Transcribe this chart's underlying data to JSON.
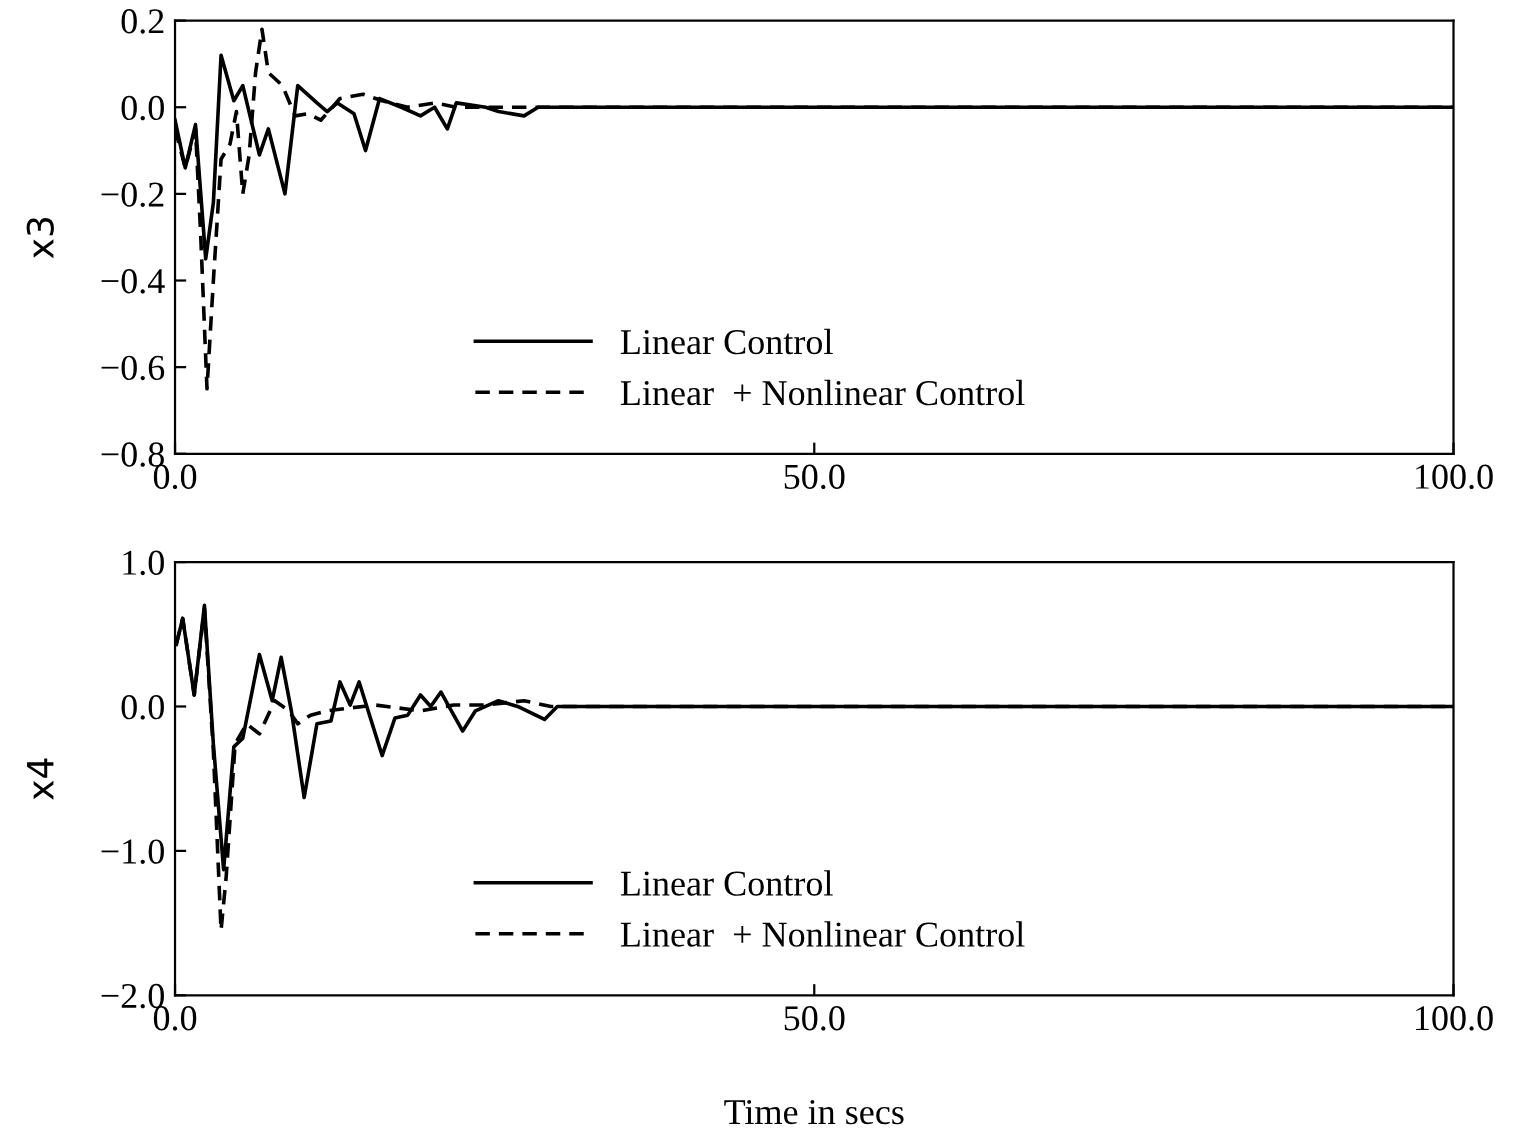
{
  "chart_data": [
    {
      "type": "line",
      "ylabel": "x3",
      "xlim": [
        0,
        100
      ],
      "ylim": [
        -0.8,
        0.2
      ],
      "xticks": [
        {
          "value": 0,
          "label": "0.0"
        },
        {
          "value": 50,
          "label": "50.0"
        },
        {
          "value": 100,
          "label": "100.0"
        }
      ],
      "yticks": [
        {
          "value": 0.2,
          "label": "0.2"
        },
        {
          "value": 0,
          "label": "0.0"
        },
        {
          "value": -0.2,
          "label": "−0.2"
        },
        {
          "value": -0.4,
          "label": "−0.4"
        },
        {
          "value": -0.6,
          "label": "−0.6"
        },
        {
          "value": -0.8,
          "label": "−0.8"
        }
      ],
      "legend": "bottom",
      "grid": false,
      "series": [
        {
          "name": "Linear Control",
          "color": "#000000",
          "line_style": "solid",
          "x": [
            0,
            0.8,
            1.6,
            2.4,
            3.0,
            3.6,
            4.6,
            5.3,
            6.6,
            7.3,
            8.6,
            9.6,
            11.1,
            11.9,
            12.7,
            14.0,
            14.9,
            16.0,
            17.7,
            19.2,
            20.3,
            21.3,
            22.0,
            24.3,
            25.3,
            27.3,
            28.4,
            34.4,
            100
          ],
          "values": [
            -0.03,
            -0.14,
            -0.04,
            -0.35,
            -0.22,
            0.12,
            0.015,
            0.05,
            -0.11,
            -0.05,
            -0.2,
            0.05,
            0.01,
            -0.01,
            0.01,
            -0.015,
            -0.1,
            0.02,
            0,
            -0.02,
            0,
            -0.05,
            0.01,
            0,
            -0.01,
            -0.02,
            0,
            0,
            0
          ]
        },
        {
          "name": "Linear  + Nonlinear Control",
          "color": "#000000",
          "line_style": "dashed",
          "x": [
            0,
            0.8,
            1.6,
            2.0,
            2.5,
            3.0,
            3.6,
            4.3,
            4.8,
            5.3,
            5.8,
            6.3,
            6.8,
            7.3,
            8.4,
            9.4,
            10.4,
            11.4,
            12.9,
            14.7,
            16.2,
            18.2,
            20.3,
            22.0,
            100
          ],
          "values": [
            -0.05,
            -0.14,
            -0.05,
            -0.29,
            -0.65,
            -0.4,
            -0.12,
            -0.085,
            -0.01,
            -0.2,
            -0.11,
            0.08,
            0.18,
            0.08,
            0.05,
            -0.02,
            -0.015,
            -0.03,
            0.02,
            0.03,
            0.015,
            0,
            0.01,
            0,
            0
          ]
        }
      ]
    },
    {
      "type": "line",
      "xlabel": "Time in secs",
      "ylabel": "x4",
      "xlim": [
        0,
        100
      ],
      "ylim": [
        -2.0,
        1.0
      ],
      "xticks": [
        {
          "value": 0,
          "label": "0.0"
        },
        {
          "value": 50,
          "label": "50.0"
        },
        {
          "value": 100,
          "label": "100.0"
        }
      ],
      "yticks": [
        {
          "value": 1.0,
          "label": "1.0"
        },
        {
          "value": 0,
          "label": "0.0"
        },
        {
          "value": -1.0,
          "label": "−1.0"
        },
        {
          "value": -2.0,
          "label": "−2.0"
        }
      ],
      "legend": "bottom",
      "grid": false,
      "series": [
        {
          "name": "Linear Control",
          "color": "#000000",
          "line_style": "solid",
          "x": [
            0.1,
            0.6,
            1.5,
            2.3,
            3.0,
            3.8,
            4.6,
            5.3,
            6.6,
            7.6,
            8.3,
            9.1,
            10.1,
            11.1,
            12.2,
            12.9,
            13.7,
            14.4,
            16.2,
            17.2,
            18.2,
            19.2,
            20.0,
            20.8,
            22.5,
            23.5,
            25.3,
            26.8,
            28.9,
            29.9,
            38.5,
            100
          ],
          "values": [
            0.43,
            0.61,
            0.08,
            0.7,
            -0.26,
            -1.13,
            -0.28,
            -0.22,
            0.36,
            0.04,
            0.34,
            -0.03,
            -0.63,
            -0.12,
            -0.1,
            0.17,
            0.01,
            0.17,
            -0.34,
            -0.08,
            -0.06,
            0.08,
            0,
            0.1,
            -0.17,
            -0.03,
            0.04,
            0,
            -0.09,
            0,
            0,
            0
          ]
        },
        {
          "name": "Linear  + Nonlinear Control",
          "color": "#000000",
          "line_style": "dashed",
          "x": [
            0.1,
            0.6,
            1.5,
            2.3,
            3.0,
            3.6,
            4.0,
            4.7,
            5.6,
            6.6,
            7.8,
            8.9,
            9.6,
            10.6,
            11.9,
            13.7,
            15.7,
            19.2,
            21.8,
            24.3,
            27.3,
            29.4,
            100
          ],
          "values": [
            0.43,
            0.61,
            0.08,
            0.68,
            -0.31,
            -1.55,
            -1.18,
            -0.26,
            -0.12,
            -0.19,
            0.04,
            -0.03,
            -0.12,
            -0.06,
            -0.03,
            -0.01,
            0.01,
            -0.03,
            0.01,
            0.01,
            0.04,
            0,
            0
          ]
        }
      ]
    }
  ]
}
